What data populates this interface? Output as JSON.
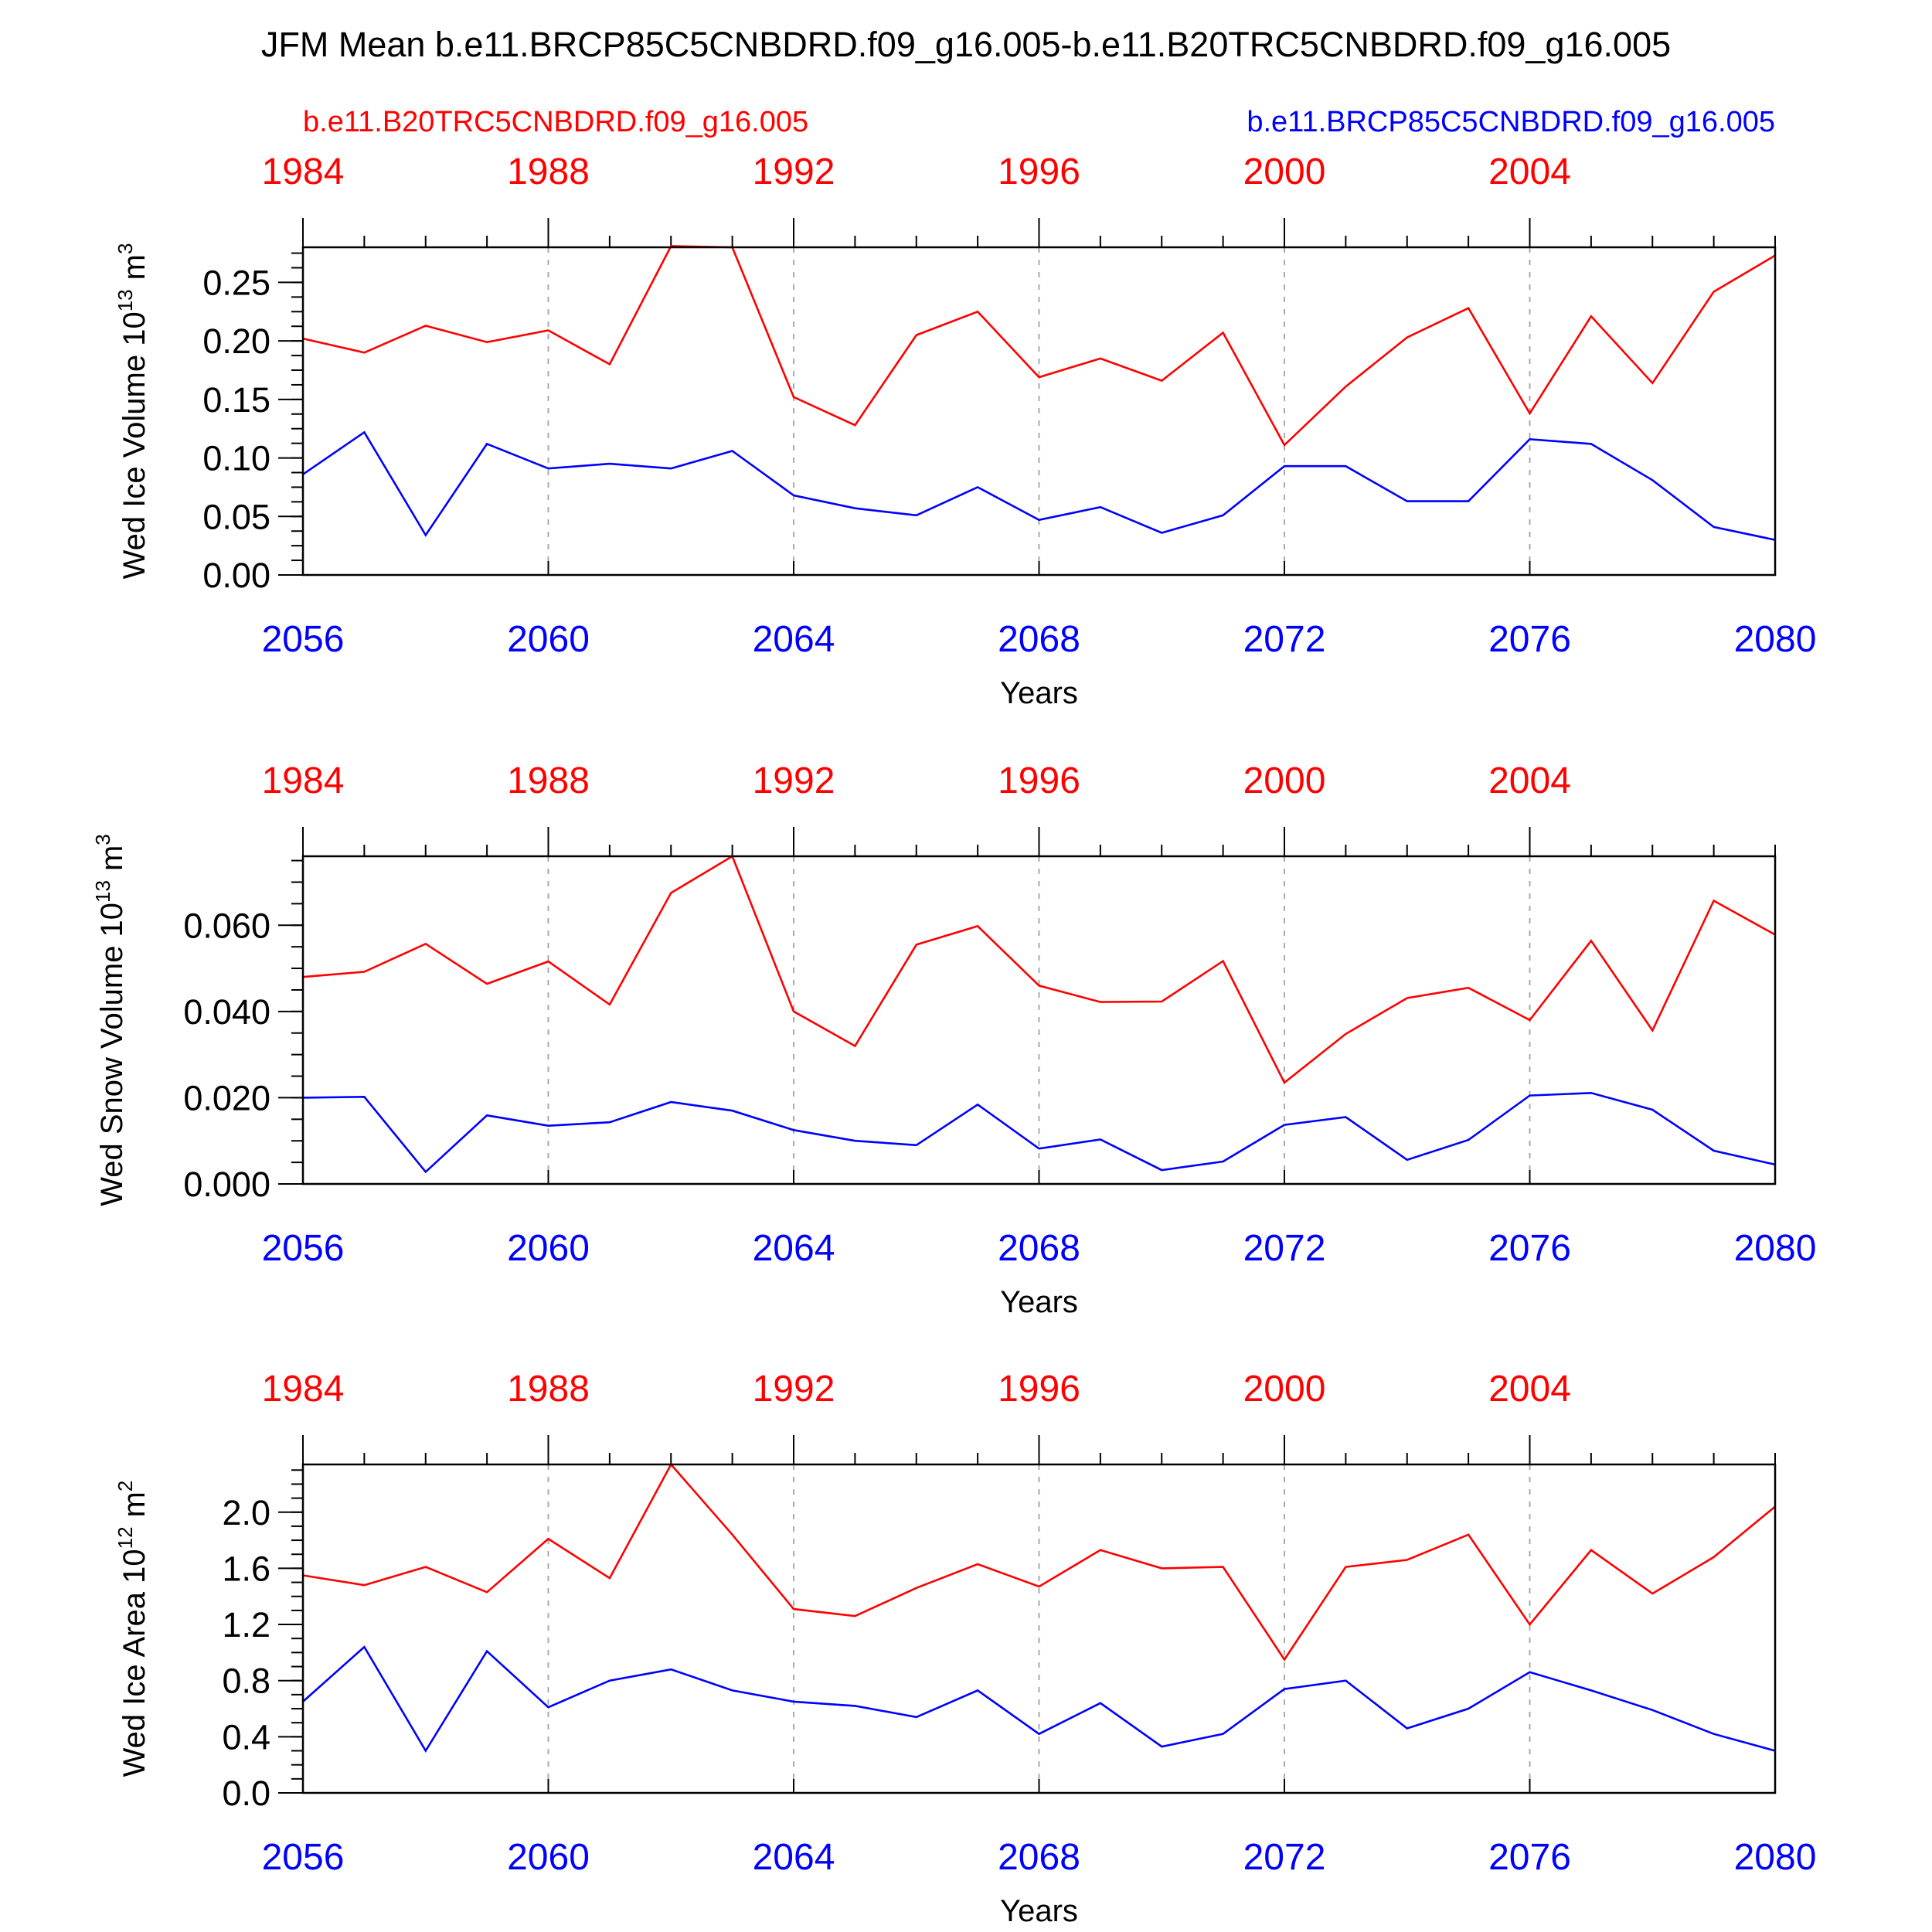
{
  "figure": {
    "title": "JFM Mean b.e11.BRCP85C5CNBDRD.f09_g16.005-b.e11.B20TRC5CNBDRD.f09_g16.005",
    "legend_left": "b.e11.B20TRC5CNBDRD.f09_g16.005",
    "legend_right": "b.e11.BRCP85C5CNBDRD.f09_g16.005",
    "colors": {
      "historical": "#ff0000",
      "future": "#0000ff",
      "axis": "#000000",
      "grid": "#aaaaaa"
    }
  },
  "chart_data": [
    {
      "type": "line",
      "ylabel": "Wed Ice Volume 10",
      "ylabel_exp": "13",
      "ylabel_unit": "m",
      "ylabel_unit_exp": "3",
      "xlabel": "Years",
      "xlim": [
        2056,
        2080
      ],
      "x_ticks": [
        "2056",
        "2060",
        "2064",
        "2068",
        "2072",
        "2076",
        "2080"
      ],
      "top_ticks": [
        "1984",
        "1988",
        "1992",
        "1996",
        "2000",
        "2004"
      ],
      "ylim": [
        0,
        0.28
      ],
      "y_ticks": [
        "0.00",
        "0.05",
        "0.10",
        "0.15",
        "0.20",
        "0.25"
      ],
      "x": [
        2056,
        2057,
        2058,
        2059,
        2060,
        2061,
        2062,
        2063,
        2064,
        2065,
        2066,
        2067,
        2068,
        2069,
        2070,
        2071,
        2072,
        2073,
        2074,
        2075,
        2076,
        2077,
        2078,
        2079,
        2080
      ],
      "series": [
        {
          "name": "b.e11.B20TRC5CNBDRD.f09_g16.005",
          "color": "#ff0000",
          "values": [
            0.202,
            0.19,
            0.213,
            0.199,
            0.209,
            0.18,
            0.281,
            0.28,
            0.152,
            0.128,
            0.205,
            0.225,
            0.169,
            0.185,
            0.166,
            0.207,
            0.111,
            0.161,
            0.203,
            0.228,
            0.138,
            0.221,
            0.164,
            0.242,
            0.273
          ]
        },
        {
          "name": "b.e11.BRCP85C5CNBDRD.f09_g16.005",
          "color": "#0000ff",
          "values": [
            0.086,
            0.122,
            0.034,
            0.112,
            0.091,
            0.095,
            0.091,
            0.106,
            0.068,
            0.057,
            0.051,
            0.075,
            0.047,
            0.058,
            0.036,
            0.051,
            0.093,
            0.093,
            0.063,
            0.063,
            0.116,
            0.112,
            0.081,
            0.041,
            0.03
          ]
        }
      ]
    },
    {
      "type": "line",
      "ylabel": "Wed Snow Volume 10",
      "ylabel_exp": "13",
      "ylabel_unit": "m",
      "ylabel_unit_exp": "3",
      "xlabel": "Years",
      "xlim": [
        2056,
        2080
      ],
      "x_ticks": [
        "2056",
        "2060",
        "2064",
        "2068",
        "2072",
        "2076",
        "2080"
      ],
      "top_ticks": [
        "1984",
        "1988",
        "1992",
        "1996",
        "2000",
        "2004"
      ],
      "ylim": [
        0,
        0.076
      ],
      "y_ticks": [
        "0.000",
        "0.020",
        "0.040",
        "0.060"
      ],
      "x": [
        2056,
        2057,
        2058,
        2059,
        2060,
        2061,
        2062,
        2063,
        2064,
        2065,
        2066,
        2067,
        2068,
        2069,
        2070,
        2071,
        2072,
        2073,
        2074,
        2075,
        2076,
        2077,
        2078,
        2079,
        2080
      ],
      "series": [
        {
          "name": "b.e11.B20TRC5CNBDRD.f09_g16.005",
          "color": "#ff0000",
          "values": [
            0.048,
            0.0492,
            0.0557,
            0.0464,
            0.0516,
            0.0416,
            0.0675,
            0.076,
            0.04,
            0.032,
            0.0555,
            0.0598,
            0.046,
            0.0422,
            0.0423,
            0.0517,
            0.0235,
            0.0348,
            0.0431,
            0.0455,
            0.038,
            0.0564,
            0.0356,
            0.0657,
            0.0578
          ]
        },
        {
          "name": "b.e11.BRCP85C5CNBDRD.f09_g16.005",
          "color": "#0000ff",
          "values": [
            0.02,
            0.0202,
            0.0028,
            0.0159,
            0.0135,
            0.0143,
            0.019,
            0.017,
            0.0125,
            0.01,
            0.009,
            0.0184,
            0.0082,
            0.0103,
            0.0032,
            0.0052,
            0.0137,
            0.0155,
            0.0056,
            0.0102,
            0.0205,
            0.0211,
            0.0172,
            0.0077,
            0.0045
          ]
        }
      ]
    },
    {
      "type": "line",
      "ylabel": "Wed Ice Area 10",
      "ylabel_exp": "12",
      "ylabel_unit": "m",
      "ylabel_unit_exp": "2",
      "xlabel": "Years",
      "xlim": [
        2056,
        2080
      ],
      "x_ticks": [
        "2056",
        "2060",
        "2064",
        "2068",
        "2072",
        "2076",
        "2080"
      ],
      "top_ticks": [
        "1984",
        "1988",
        "1992",
        "1996",
        "2000",
        "2004"
      ],
      "ylim": [
        0,
        2.34
      ],
      "y_ticks": [
        "0.0",
        "0.4",
        "0.8",
        "1.2",
        "1.6",
        "2.0"
      ],
      "x": [
        2056,
        2057,
        2058,
        2059,
        2060,
        2061,
        2062,
        2063,
        2064,
        2065,
        2066,
        2067,
        2068,
        2069,
        2070,
        2071,
        2072,
        2073,
        2074,
        2075,
        2076,
        2077,
        2078,
        2079,
        2080
      ],
      "series": [
        {
          "name": "b.e11.B20TRC5CNBDRD.f09_g16.005",
          "color": "#ff0000",
          "values": [
            1.55,
            1.48,
            1.61,
            1.43,
            1.81,
            1.53,
            2.34,
            1.84,
            1.31,
            1.26,
            1.46,
            1.63,
            1.47,
            1.73,
            1.6,
            1.61,
            0.95,
            1.61,
            1.66,
            1.84,
            1.2,
            1.73,
            1.42,
            1.68,
            2.04
          ]
        },
        {
          "name": "b.e11.BRCP85C5CNBDRD.f09_g16.005",
          "color": "#0000ff",
          "values": [
            0.65,
            1.04,
            0.3,
            1.01,
            0.61,
            0.8,
            0.88,
            0.73,
            0.65,
            0.62,
            0.54,
            0.73,
            0.42,
            0.64,
            0.33,
            0.42,
            0.74,
            0.8,
            0.46,
            0.6,
            0.86,
            0.73,
            0.59,
            0.42,
            0.3
          ]
        }
      ]
    }
  ]
}
